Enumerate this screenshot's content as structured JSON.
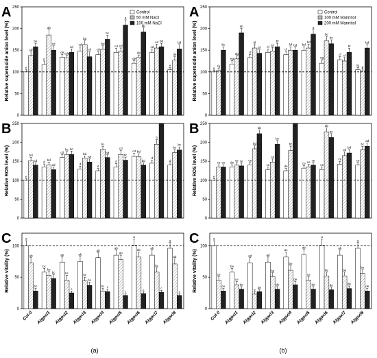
{
  "captions": {
    "left": "(a)",
    "right": "(b)"
  },
  "chart_data": [
    {
      "id": "left-A",
      "panel": "A",
      "type": "bar",
      "ylabel": "Relative superoxide anion level (%)",
      "ylim": [
        0,
        250
      ],
      "yticks": [
        0,
        50,
        100,
        150,
        200,
        250
      ],
      "refline": 100,
      "legend_position": "top-right",
      "categories": [
        "Col-0",
        "Atgpxl1",
        "Atgpxl2",
        "Atgpxl3",
        "Atgpxl4",
        "Atgpxl5",
        "Atgpxl6",
        "Atgpxl7",
        "Atgpxl8"
      ],
      "series": [
        {
          "name": "Control",
          "values": [
            100,
            117,
            134,
            148,
            140,
            145,
            120,
            145,
            105
          ],
          "errors": [
            5,
            8,
            6,
            10,
            7,
            9,
            6,
            8,
            5
          ],
          "sig": [
            "e",
            "e",
            "de",
            "cd",
            "cd",
            "cd",
            "de",
            "cd",
            "e"
          ]
        },
        {
          "name": "50 mM NaCl",
          "values": [
            138,
            185,
            132,
            163,
            152,
            148,
            133,
            155,
            127
          ],
          "errors": [
            8,
            12,
            6,
            9,
            8,
            7,
            6,
            9,
            8
          ],
          "sig": [
            "cd",
            "ab",
            "cde",
            "bd",
            "bd",
            "cd",
            "de",
            "cd",
            "de"
          ]
        },
        {
          "name": "100 mM NaCl",
          "values": [
            158,
            150,
            145,
            135,
            175,
            208,
            192,
            158,
            153
          ],
          "errors": [
            8,
            10,
            8,
            12,
            9,
            12,
            10,
            8,
            10
          ],
          "sig": [
            "be",
            "cd",
            "cd",
            "cd",
            "bc",
            "a",
            "ab",
            "bd",
            "bd"
          ]
        }
      ]
    },
    {
      "id": "left-B",
      "panel": "B",
      "type": "bar",
      "ylabel": "Relative ROS level (%)",
      "ylim": [
        0,
        250
      ],
      "yticks": [
        0,
        50,
        100,
        150,
        200,
        250
      ],
      "refline": 100,
      "categories": [
        "Col-0",
        "Atgpxl1",
        "Atgpxl2",
        "Atgpxl3",
        "Atgpxl4",
        "Atgpxl5",
        "Atgpxl6",
        "Atgpxl7",
        "Atgpxl8"
      ],
      "series": [
        {
          "name": "Control",
          "values": [
            100,
            135,
            160,
            130,
            125,
            135,
            163,
            145,
            140
          ],
          "errors": [
            4,
            8,
            8,
            7,
            6,
            9,
            8,
            8,
            6
          ],
          "sig": [
            "e",
            "d",
            "cd",
            "d",
            "d",
            "d",
            "cd",
            "d",
            "d"
          ]
        },
        {
          "name": "50 mM NaCl",
          "values": [
            152,
            140,
            168,
            158,
            182,
            168,
            162,
            195,
            173
          ],
          "errors": [
            8,
            8,
            8,
            6,
            7,
            10,
            8,
            12,
            8
          ],
          "sig": [
            "bd",
            "bd",
            "bc",
            "bd",
            "bc",
            "cd",
            "bd",
            "b",
            "bc"
          ]
        },
        {
          "name": "100 mM NaCl",
          "values": [
            140,
            128,
            168,
            148,
            160,
            153,
            140,
            250,
            180
          ],
          "errors": [
            6,
            7,
            9,
            8,
            7,
            8,
            6,
            12,
            8
          ],
          "sig": [
            "cd",
            "cd",
            "bc",
            "bd",
            "bd",
            "bc",
            "bd",
            "a",
            "bc"
          ]
        }
      ]
    },
    {
      "id": "left-C",
      "panel": "C",
      "type": "bar",
      "ylabel": "Relative vitality (%)",
      "ylim": [
        0,
        120
      ],
      "yticks": [
        0,
        50,
        100
      ],
      "refline": 100,
      "categories": [
        "Col-0",
        "Atgpxl1",
        "Atgpxl2",
        "Atgpxl3",
        "Atgpxl4",
        "Atgpxl5",
        "Atgpxl6",
        "Atgpxl7",
        "Atgpxl8"
      ],
      "series": [
        {
          "name": "Control",
          "values": [
            100,
            58,
            74,
            75,
            81,
            85,
            101,
            85,
            96
          ],
          "errors": [
            8,
            6,
            8,
            8,
            8,
            8,
            10,
            8,
            9
          ],
          "sig": [
            "a",
            "bc",
            "ab",
            "ab",
            "ab",
            "ab",
            "a",
            "ab",
            "a"
          ]
        },
        {
          "name": "50 mM NaCl",
          "values": [
            73,
            53,
            45,
            44,
            28,
            78,
            82,
            58,
            71
          ],
          "errors": [
            8,
            6,
            8,
            6,
            4,
            7,
            8,
            7,
            8
          ],
          "sig": [
            "ab",
            "bc",
            "bc",
            "bc",
            "bc",
            "ab",
            "ab",
            "bc",
            "ab"
          ]
        },
        {
          "name": "100 mM NaCl",
          "values": [
            28,
            48,
            25,
            37,
            27,
            21,
            24,
            26,
            21
          ],
          "errors": [
            4,
            6,
            3,
            5,
            4,
            3,
            3,
            3,
            3
          ],
          "sig": [
            "bc",
            "bc",
            "c",
            "bc",
            "c",
            "c",
            "c",
            "c",
            "c"
          ]
        }
      ]
    },
    {
      "id": "right-A",
      "panel": "A",
      "type": "bar",
      "ylabel": "Relative superoxide anion level (%)",
      "ylim": [
        0,
        250
      ],
      "yticks": [
        0,
        50,
        100,
        150,
        200,
        250
      ],
      "refline": 100,
      "legend_position": "top-right",
      "categories": [
        "Col-0",
        "Atgpxl1",
        "Atgpxl2",
        "Atgpxl3",
        "Atgpxl4",
        "Atgpxl5",
        "Atgpxl6",
        "Atgpxl7",
        "Atgpxl8"
      ],
      "series": [
        {
          "name": "Control",
          "values": [
            100,
            118,
            133,
            145,
            140,
            150,
            120,
            128,
            105
          ],
          "errors": [
            4,
            8,
            7,
            8,
            7,
            8,
            8,
            7,
            5
          ],
          "sig": [
            "g",
            "eg",
            "cf",
            "cf",
            "cf",
            "bd",
            "eg",
            "cf",
            "fg"
          ]
        },
        {
          "name": "100 mM Mannitol",
          "values": [
            103,
            130,
            155,
            148,
            150,
            155,
            172,
            125,
            102
          ],
          "errors": [
            5,
            7,
            8,
            8,
            8,
            9,
            10,
            8,
            5
          ],
          "sig": [
            "fg",
            "dg",
            "bf",
            "bf",
            "bf",
            "bd",
            "bc",
            "cf",
            "g"
          ]
        },
        {
          "name": "200 mM Mannitol",
          "values": [
            150,
            190,
            143,
            158,
            150,
            187,
            165,
            145,
            155
          ],
          "errors": [
            8,
            10,
            8,
            8,
            7,
            10,
            9,
            9,
            8
          ],
          "sig": [
            "bc",
            "ab",
            "bf",
            "bf",
            "bd",
            "a",
            "bc",
            "bf",
            "bd"
          ]
        }
      ]
    },
    {
      "id": "right-B",
      "panel": "B",
      "type": "bar",
      "ylabel": "Relative ROS level (%)",
      "ylim": [
        0,
        250
      ],
      "yticks": [
        0,
        50,
        100,
        150,
        200,
        250
      ],
      "refline": 100,
      "categories": [
        "Col-0",
        "Atgpxl1",
        "Atgpxl2",
        "Atgpxl3",
        "Atgpxl4",
        "Atgpxl5",
        "Atgpxl6",
        "Atgpxl7",
        "Atgpxl8"
      ],
      "series": [
        {
          "name": "Control",
          "values": [
            100,
            135,
            140,
            128,
            125,
            132,
            128,
            142,
            140
          ],
          "errors": [
            4,
            6,
            7,
            7,
            6,
            7,
            7,
            8,
            7
          ],
          "sig": [
            "e",
            "de",
            "ce",
            "ce",
            "de",
            "ce",
            "ce",
            "ce",
            "ce"
          ]
        },
        {
          "name": "100 mM Mannitol",
          "values": [
            135,
            140,
            183,
            148,
            178,
            135,
            228,
            165,
            180
          ],
          "errors": [
            6,
            7,
            8,
            8,
            12,
            7,
            10,
            10,
            9
          ],
          "sig": [
            "ce",
            "ce",
            "bd",
            "ce",
            "bc",
            "ce",
            "ab",
            "cd",
            "bc"
          ]
        },
        {
          "name": "200 mM Mannitol",
          "values": [
            135,
            138,
            223,
            195,
            270,
            140,
            213,
            172,
            190
          ],
          "errors": [
            6,
            7,
            10,
            10,
            12,
            7,
            10,
            9,
            8
          ],
          "sig": [
            "ce",
            "ce",
            "ab",
            "bc",
            "a",
            "ce",
            "ac",
            "bd",
            "ad"
          ]
        }
      ]
    },
    {
      "id": "right-C",
      "panel": "C",
      "type": "bar",
      "ylabel": "Relative vitality (%)",
      "ylim": [
        0,
        120
      ],
      "yticks": [
        0,
        50,
        100
      ],
      "refline": 100,
      "categories": [
        "Col-0",
        "Atgpxl1",
        "Atgpxl2",
        "Atgpxl3",
        "Atgpxl4",
        "Atgpxl5",
        "Atgpxl6",
        "Atgpxl7",
        "Atgpxl8"
      ],
      "series": [
        {
          "name": "Control",
          "values": [
            100,
            58,
            73,
            74,
            82,
            86,
            101,
            85,
            96
          ],
          "errors": [
            8,
            6,
            8,
            8,
            8,
            8,
            10,
            8,
            9
          ],
          "sig": [
            "a",
            "be",
            "ad",
            "ad",
            "ac",
            "ab",
            "a",
            "ab",
            "a"
          ]
        },
        {
          "name": "100 mM Mannitol",
          "values": [
            45,
            38,
            23,
            51,
            61,
            45,
            52,
            52,
            56
          ],
          "errors": [
            6,
            5,
            4,
            6,
            7,
            6,
            6,
            6,
            6
          ],
          "sig": [
            "ce",
            "ce",
            "e",
            "be",
            "be",
            "ce",
            "be",
            "be",
            "be"
          ]
        },
        {
          "name": "200 mM Mannitol",
          "values": [
            28,
            31,
            27,
            31,
            38,
            31,
            30,
            32,
            28
          ],
          "errors": [
            4,
            4,
            3,
            4,
            5,
            4,
            4,
            4,
            4
          ],
          "sig": [
            "ce",
            "de",
            "de",
            "de",
            "de",
            "de",
            "de",
            "de",
            "de"
          ]
        }
      ]
    }
  ]
}
